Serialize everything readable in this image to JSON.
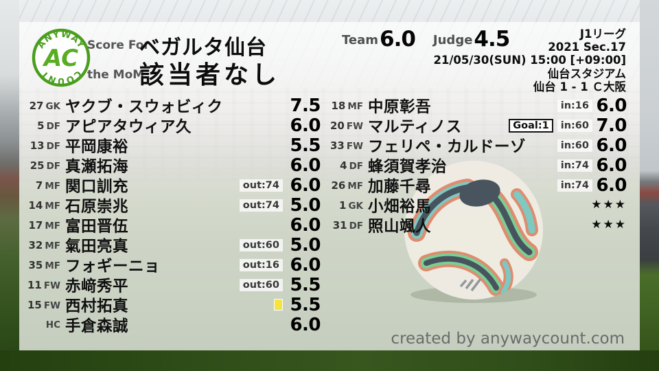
{
  "logo": {
    "top": "ANYWAY",
    "center": "AC",
    "bottom": "COUNT"
  },
  "header": {
    "score_for_label": "Score For",
    "team_name": "ベガルタ仙台",
    "mom_label": "the MoM",
    "mom_value": "該当者なし",
    "team_label": "Team",
    "team_score": "6.0",
    "judge_label": "Judge",
    "judge_score": "4.5"
  },
  "match": {
    "league": "J1リーグ",
    "season_sec": "2021 Sec.17",
    "datetime": "21/05/30(SUN) 15:00 [+09:00]",
    "venue": "仙台スタジアム",
    "result": "仙台 1 - 1 Ｃ大阪"
  },
  "colors": {
    "accent_green": "#4a9e1d",
    "card_yellow": "#f4e53e",
    "badge_bg": "#f1f1ef",
    "score_text": "#000000",
    "label_gray": "#555555"
  },
  "players_left": [
    {
      "num": "27",
      "pos": "GK",
      "name": "ヤクブ・スウォビィク",
      "score": "7.5"
    },
    {
      "num": "5",
      "pos": "DF",
      "name": "アピアタウィア久",
      "score": "6.0"
    },
    {
      "num": "13",
      "pos": "DF",
      "name": "平岡康裕",
      "score": "5.5"
    },
    {
      "num": "25",
      "pos": "DF",
      "name": "真瀬拓海",
      "score": "6.0"
    },
    {
      "num": "7",
      "pos": "MF",
      "name": "関口訓充",
      "badge": "out:74",
      "score": "6.0"
    },
    {
      "num": "14",
      "pos": "MF",
      "name": "石原崇兆",
      "badge": "out:74",
      "score": "5.0"
    },
    {
      "num": "17",
      "pos": "MF",
      "name": "富田晋伍",
      "score": "6.0"
    },
    {
      "num": "32",
      "pos": "MF",
      "name": "氣田亮真",
      "badge": "out:60",
      "score": "5.0"
    },
    {
      "num": "35",
      "pos": "MF",
      "name": "フォギーニョ",
      "badge": "out:16",
      "score": "6.0"
    },
    {
      "num": "11",
      "pos": "FW",
      "name": "赤﨑秀平",
      "badge": "out:60",
      "score": "5.5"
    },
    {
      "num": "15",
      "pos": "FW",
      "name": "西村拓真",
      "yellow_card": true,
      "score": "5.5"
    },
    {
      "num": "",
      "pos": "HC",
      "name": "手倉森誠",
      "score": "6.0"
    }
  ],
  "players_right": [
    {
      "num": "18",
      "pos": "MF",
      "name": "中原彰吾",
      "badge": "in:16",
      "score": "6.0"
    },
    {
      "num": "20",
      "pos": "FW",
      "name": "マルティノス",
      "goal": "Goal:1",
      "badge": "in:60",
      "score": "7.0"
    },
    {
      "num": "33",
      "pos": "FW",
      "name": "フェリペ・カルドーゾ",
      "badge": "in:60",
      "score": "6.0"
    },
    {
      "num": "4",
      "pos": "DF",
      "name": "蜂須賀孝治",
      "badge": "in:74",
      "score": "6.0"
    },
    {
      "num": "26",
      "pos": "MF",
      "name": "加藤千尋",
      "badge": "in:74",
      "score": "6.0"
    },
    {
      "num": "1",
      "pos": "GK",
      "name": "小畑裕馬",
      "stars": "★★★"
    },
    {
      "num": "31",
      "pos": "DF",
      "name": "照山颯人",
      "stars": "★★★"
    }
  ],
  "footer": {
    "created_by": "created by anywaycount.com"
  }
}
